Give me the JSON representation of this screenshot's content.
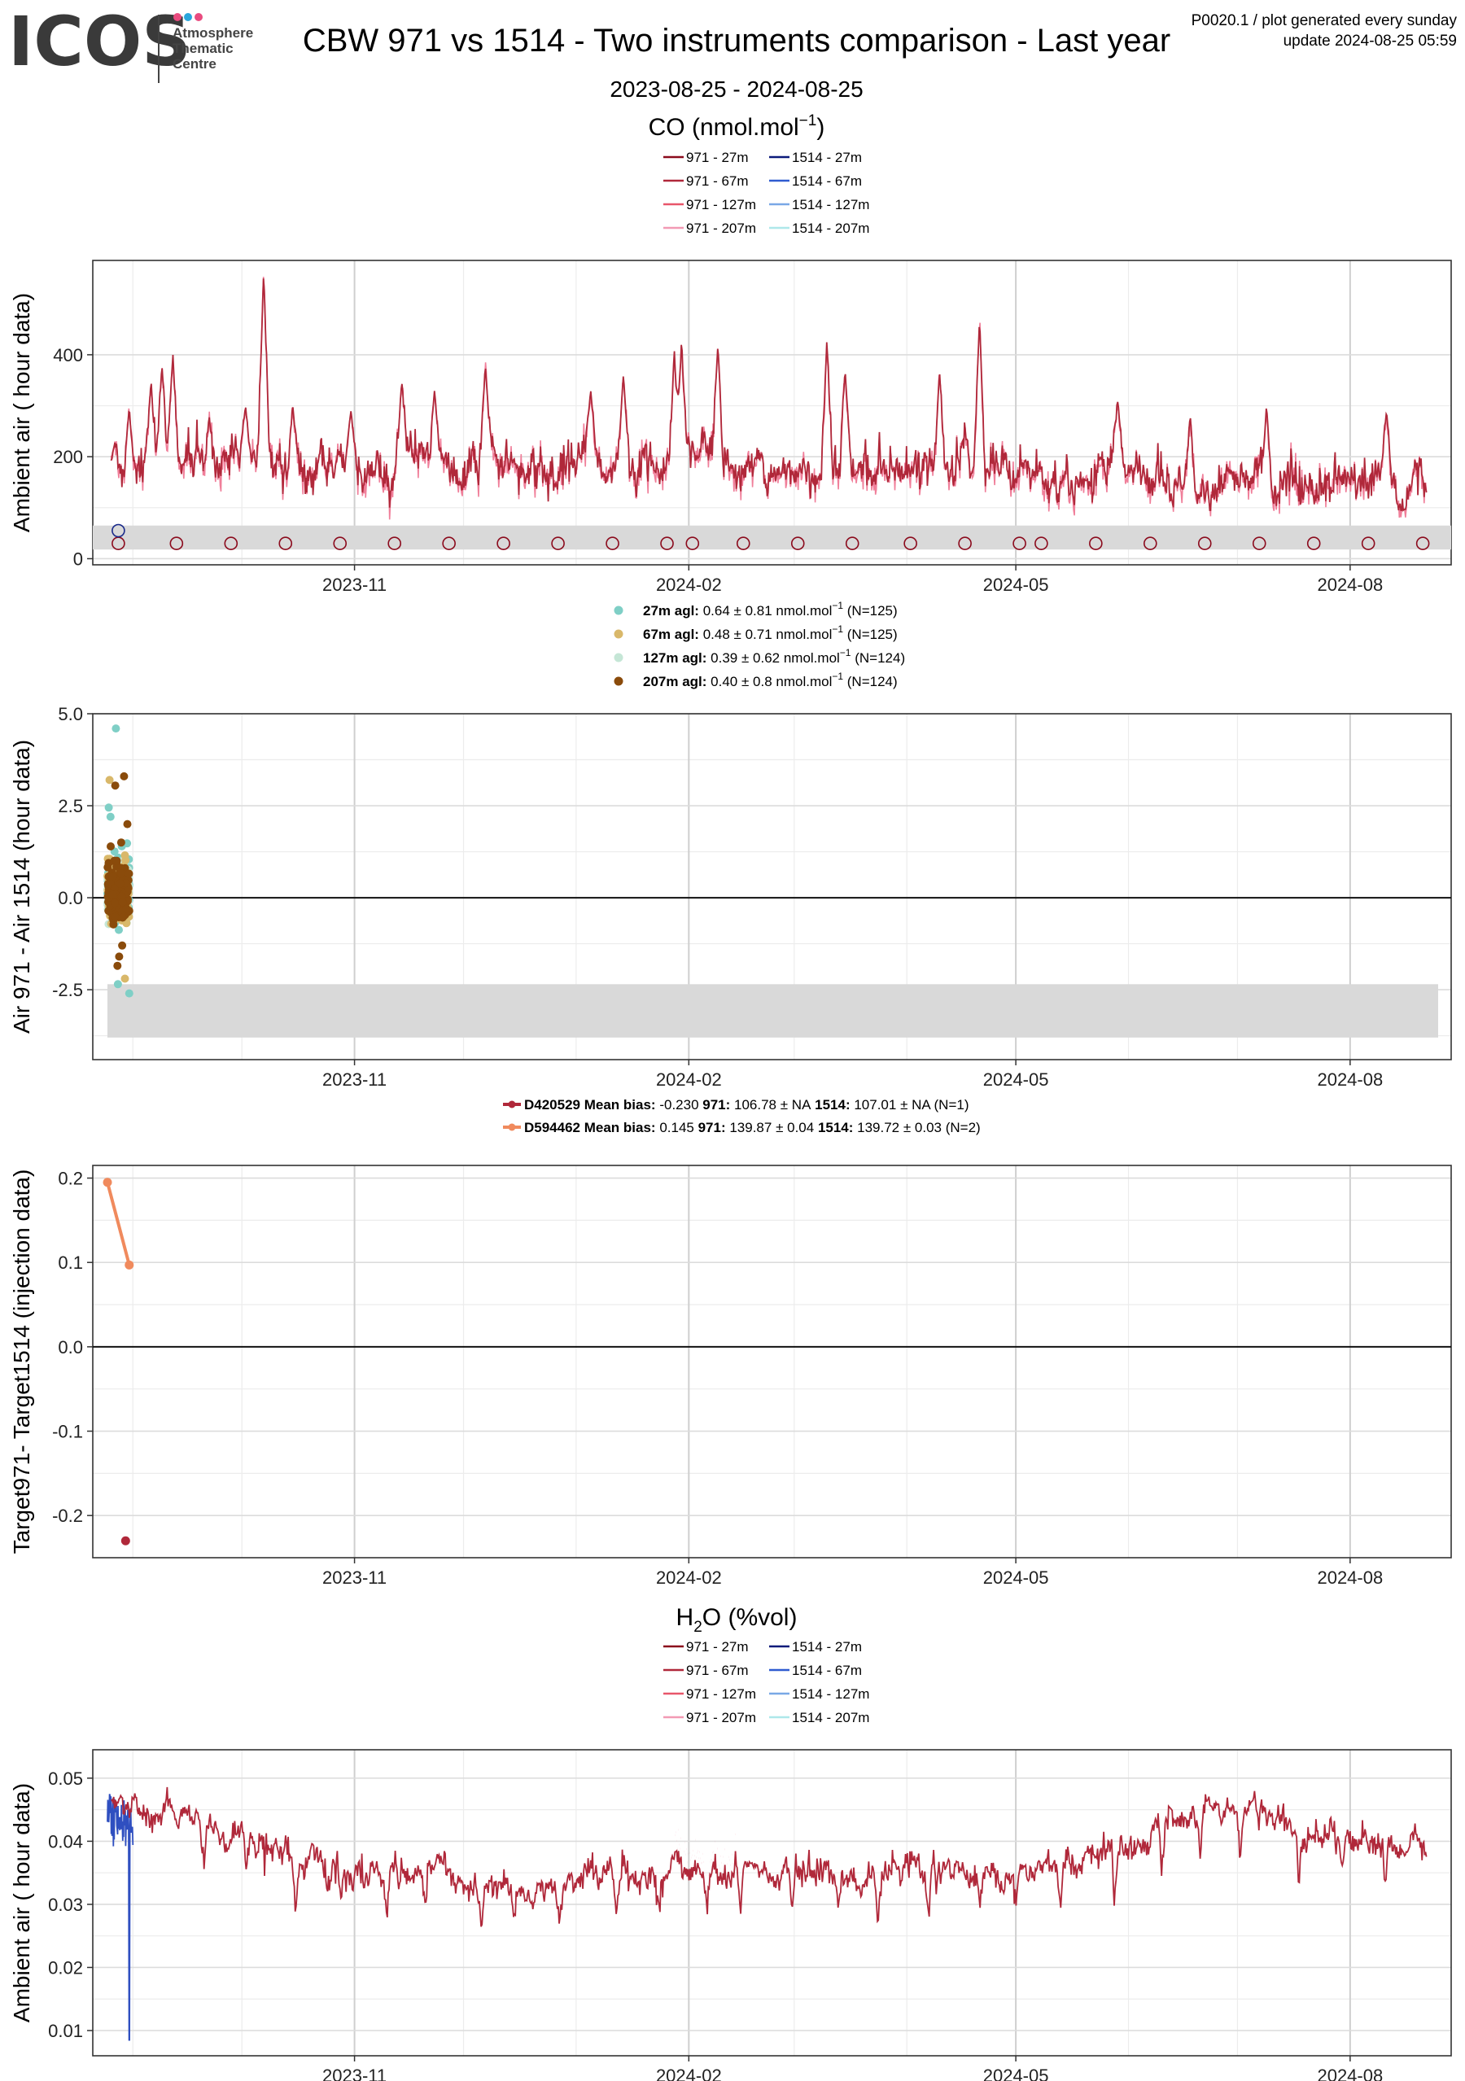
{
  "header": {
    "logo_word": "ICOS",
    "logo_sub": [
      "Atmosphere",
      "Thematic",
      "Centre"
    ],
    "logo_dot_colors": [
      "#e94b7f",
      "#2aa6dc",
      "#e94b7f"
    ],
    "title": "CBW 971 vs 1514 - Two instruments comparison - Last year",
    "subtitle": "2023-08-25 - 2024-08-25",
    "meta_line1": "P0020.1 / plot generated every sunday",
    "meta_line2": "update  2024-08-25 05:59"
  },
  "chart_data": [
    {
      "id": "co_ambient",
      "type": "line",
      "section_title": "CO (nmol.mol",
      "section_title_sup": "−1",
      "section_title_end": ")",
      "ylabel": "Ambient air ( hour data)",
      "ylim": [
        -12,
        585
      ],
      "yticks": [
        0,
        200,
        400
      ],
      "ytick_labels": [
        "0",
        "200",
        "400"
      ],
      "xticks": [
        "2023-11",
        "2024-02",
        "2024-05",
        "2024-08"
      ],
      "legend_rows": [
        [
          "971 - 27m",
          "1514 - 27m"
        ],
        [
          "971 - 67m",
          "1514 - 67m"
        ],
        [
          "971 - 127m",
          "1514 - 127m"
        ],
        [
          "971 - 207m",
          "1514 - 207m"
        ]
      ],
      "legend_colors": [
        [
          "#8b0a1c",
          "#0b1a7a"
        ],
        [
          "#b0283a",
          "#2f5bd0"
        ],
        [
          "#e8566a",
          "#79a8e6"
        ],
        [
          "#f29ab4",
          "#aee8ea"
        ]
      ],
      "series_colors": {
        "main": "#b0283a",
        "alt": "#f07f9a"
      },
      "band": [
        18,
        65
      ],
      "marker_y": 30,
      "marker_dates": [
        "2023-08-28",
        "2023-09-13",
        "2023-09-28",
        "2023-10-13",
        "2023-10-28",
        "2023-11-12",
        "2023-11-27",
        "2023-12-12",
        "2023-12-27",
        "2024-01-11",
        "2024-01-26",
        "2024-02-02",
        "2024-02-16",
        "2024-03-02",
        "2024-03-17",
        "2024-04-02",
        "2024-04-17",
        "2024-05-02",
        "2024-05-08",
        "2024-05-23",
        "2024-06-07",
        "2024-06-22",
        "2024-07-07",
        "2024-07-22",
        "2024-08-06",
        "2024-08-21"
      ],
      "special_marker": {
        "date": "2023-08-28",
        "y": 55
      },
      "noise_base": [
        [
          0,
          160
        ],
        [
          0.05,
          185
        ],
        [
          0.12,
          180
        ],
        [
          0.2,
          165
        ],
        [
          0.3,
          175
        ],
        [
          0.45,
          170
        ],
        [
          0.6,
          165
        ],
        [
          0.75,
          150
        ],
        [
          0.88,
          130
        ],
        [
          1.0,
          145
        ]
      ],
      "spikes": [
        [
          "2023-08-27",
          230
        ],
        [
          "2023-08-31",
          300
        ],
        [
          "2023-09-06",
          350
        ],
        [
          "2023-09-09",
          380
        ],
        [
          "2023-09-12",
          405
        ],
        [
          "2023-09-22",
          280
        ],
        [
          "2023-10-02",
          300
        ],
        [
          "2023-10-07",
          560
        ],
        [
          "2023-10-15",
          300
        ],
        [
          "2023-10-31",
          290
        ],
        [
          "2023-11-14",
          350
        ],
        [
          "2023-11-23",
          330
        ],
        [
          "2023-12-07",
          380
        ],
        [
          "2024-01-05",
          330
        ],
        [
          "2024-01-14",
          360
        ],
        [
          "2024-01-28",
          410
        ],
        [
          "2024-01-30",
          430
        ],
        [
          "2024-02-09",
          420
        ],
        [
          "2024-03-10",
          430
        ],
        [
          "2024-03-15",
          370
        ],
        [
          "2024-04-10",
          370
        ],
        [
          "2024-04-21",
          470
        ],
        [
          "2024-05-29",
          310
        ],
        [
          "2024-06-18",
          280
        ],
        [
          "2024-07-09",
          300
        ],
        [
          "2024-08-11",
          290
        ]
      ]
    },
    {
      "id": "co_air_diff",
      "type": "scatter",
      "ylabel": "Air 971 - Air 1514 (hour data)",
      "ylim": [
        -4.4,
        5.0
      ],
      "yticks": [
        -2.5,
        0.0,
        2.5,
        5.0
      ],
      "ytick_labels": [
        "-2.5",
        "0.0",
        "2.5",
        "5.0"
      ],
      "xticks": [
        "2023-11",
        "2024-02",
        "2024-05",
        "2024-08"
      ],
      "band": [
        -3.8,
        -2.35
      ],
      "series": [
        {
          "name": "27m agl:",
          "stats": "0.64 ± 0.81 nmol.mol",
          "sup": "−1",
          "n": "(N=125)",
          "color": "#7fcfc6",
          "mean": 0.64,
          "sd": 0.81
        },
        {
          "name": "67m agl:",
          "stats": "0.48 ± 0.71 nmol.mol",
          "sup": "−1",
          "n": "(N=125)",
          "color": "#d9b86a",
          "mean": 0.48,
          "sd": 0.71
        },
        {
          "name": "127m agl:",
          "stats": "0.39 ± 0.62 nmol.mol",
          "sup": "−1",
          "n": "(N=124)",
          "color": "#c5e6d6",
          "mean": 0.39,
          "sd": 0.62
        },
        {
          "name": "207m agl:",
          "stats": "0.40 ± 0.8 nmol.mol",
          "sup": "−1",
          "n": "(N=124)",
          "color": "#8a4b0b",
          "mean": 0.4,
          "sd": 0.8
        }
      ],
      "date_range": [
        "2023-08-25",
        "2023-08-31"
      ],
      "highlights": [
        [
          4.6,
          0
        ],
        [
          3.3,
          3
        ],
        [
          3.2,
          1
        ],
        [
          3.05,
          3
        ],
        [
          2.45,
          0
        ],
        [
          2.2,
          0
        ],
        [
          -1.85,
          3
        ],
        [
          -2.35,
          0
        ],
        [
          -2.6,
          0
        ],
        [
          -2.2,
          1
        ],
        [
          -1.3,
          3
        ],
        [
          -1.6,
          3
        ],
        [
          2.0,
          3
        ],
        [
          1.5,
          3
        ]
      ]
    },
    {
      "id": "co_target_diff",
      "type": "line",
      "ylabel": "Target971- Target1514 (injection data)",
      "ylim": [
        -0.25,
        0.215
      ],
      "yticks": [
        -0.2,
        -0.1,
        0.0,
        0.1,
        0.2
      ],
      "ytick_labels": [
        "-0.2",
        "-0.1",
        "0.0",
        "0.1",
        "0.2"
      ],
      "xticks": [
        "2023-11",
        "2024-02",
        "2024-05",
        "2024-08"
      ],
      "series": [
        {
          "name": "D420529",
          "label": "Mean bias:",
          "bias": "-0.230",
          "i1": "971:",
          "v1": "106.78 ±  NA",
          "i2": "1514:",
          "v2": "107.01 ± NA (N=1)",
          "color": "#b0283a",
          "points": [
            [
              "2023-08-30",
              -0.23
            ]
          ]
        },
        {
          "name": "D594462",
          "label": "Mean bias:",
          "bias": "0.145",
          "i1": "971:",
          "v1": "139.87 ± 0.04",
          "i2": "1514:",
          "v2": "139.72 ± 0.03 (N=2)",
          "color": "#f08a5d",
          "points": [
            [
              "2023-08-25",
              0.195
            ],
            [
              "2023-08-31",
              0.097
            ]
          ]
        }
      ]
    },
    {
      "id": "h2o_ambient",
      "type": "line",
      "section_title": "H",
      "section_title_sub": "2",
      "section_title_end": "O (%vol)",
      "ylabel": "Ambient air ( hour data)",
      "ylim": [
        0.006,
        0.0545
      ],
      "yticks": [
        0.01,
        0.02,
        0.03,
        0.04,
        0.05
      ],
      "ytick_labels": [
        "0.01",
        "0.02",
        "0.03",
        "0.04",
        "0.05"
      ],
      "xticks": [
        "2023-11",
        "2024-02",
        "2024-05",
        "2024-08"
      ],
      "legend_rows": [
        [
          "971 - 27m",
          "1514 - 27m"
        ],
        [
          "971 - 67m",
          "1514 - 67m"
        ],
        [
          "971 - 127m",
          "1514 - 127m"
        ],
        [
          "971 - 207m",
          "1514 - 207m"
        ]
      ],
      "legend_colors": [
        [
          "#8b0a1c",
          "#0b1a7a"
        ],
        [
          "#b0283a",
          "#2f5bd0"
        ],
        [
          "#e8566a",
          "#79a8e6"
        ],
        [
          "#f29ab4",
          "#aee8ea"
        ]
      ],
      "series_colors": {
        "main": "#b0283a",
        "alt": "#f07f9a",
        "blue": "#2f4fc0"
      },
      "baseline": [
        [
          "2023-08-25",
          0.0475
        ],
        [
          "2023-09-05",
          0.043
        ],
        [
          "2023-09-15",
          0.046
        ],
        [
          "2023-09-25",
          0.04
        ],
        [
          "2023-10-10",
          0.039
        ],
        [
          "2023-10-25",
          0.0355
        ],
        [
          "2023-11-15",
          0.035
        ],
        [
          "2023-12-05",
          0.0335
        ],
        [
          "2023-12-20",
          0.0318
        ],
        [
          "2024-01-05",
          0.0345
        ],
        [
          "2024-01-25",
          0.0355
        ],
        [
          "2024-02-15",
          0.0355
        ],
        [
          "2024-03-05",
          0.035
        ],
        [
          "2024-03-25",
          0.0345
        ],
        [
          "2024-04-15",
          0.035
        ],
        [
          "2024-05-05",
          0.0355
        ],
        [
          "2024-05-25",
          0.038
        ],
        [
          "2024-06-15",
          0.042
        ],
        [
          "2024-07-01",
          0.046
        ],
        [
          "2024-07-15",
          0.043
        ],
        [
          "2024-08-01",
          0.04
        ],
        [
          "2024-08-15",
          0.0395
        ],
        [
          "2024-08-25",
          0.041
        ]
      ],
      "blue_segment": {
        "start": "2023-08-25",
        "end": "2023-09-01",
        "low_date": "2023-08-31",
        "low": 0.0085
      }
    }
  ]
}
